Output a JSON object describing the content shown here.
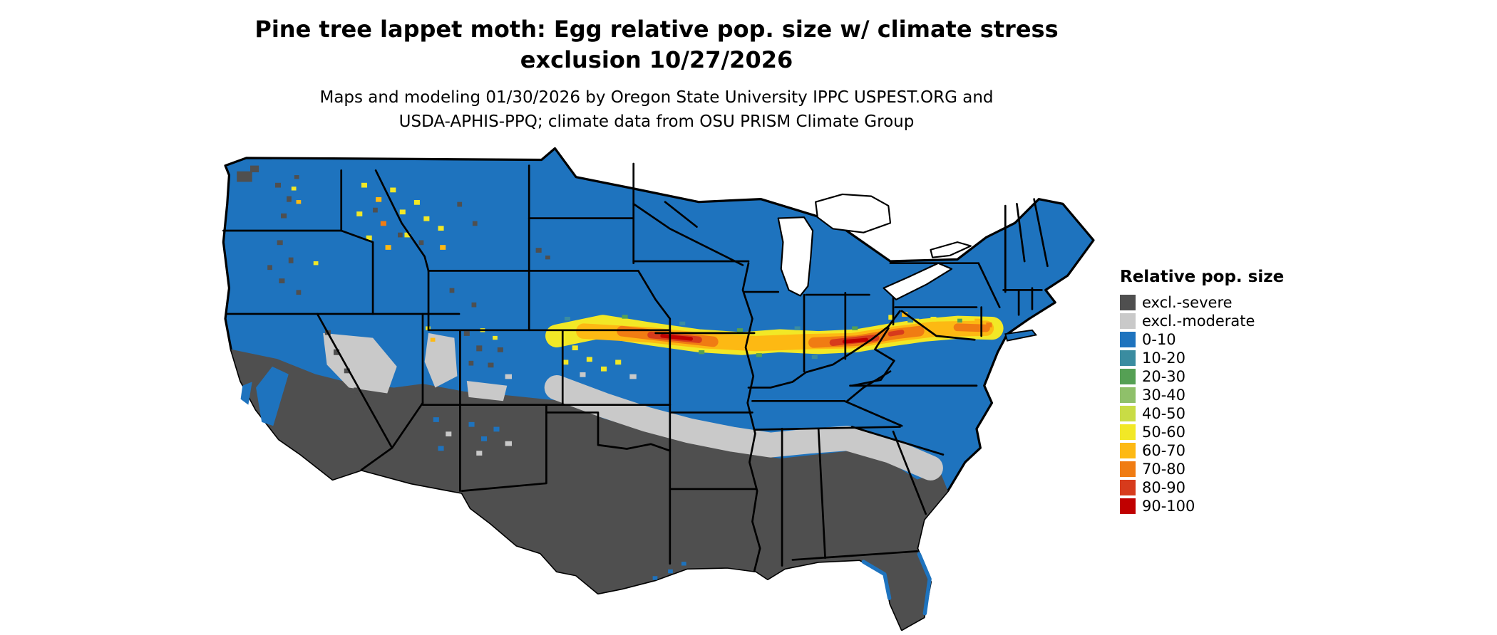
{
  "title": {
    "line1": "Pine tree lappet moth: Egg relative pop. size w/ climate stress",
    "line2": "exclusion 10/27/2026"
  },
  "subtitle": {
    "line1": "Maps and modeling 01/30/2026 by Oregon State University IPPC USPEST.ORG and",
    "line2": "USDA-APHIS-PPQ; climate data from OSU PRISM Climate Group"
  },
  "legend": {
    "title": "Relative pop. size",
    "entries": [
      {
        "label": "excl.-severe",
        "color": "#4F4F4F"
      },
      {
        "label": "excl.-moderate",
        "color": "#C9C9C9"
      },
      {
        "label": "0-10",
        "color": "#1E73BE"
      },
      {
        "label": "10-20",
        "color": "#3A8CA0"
      },
      {
        "label": "20-30",
        "color": "#55A054"
      },
      {
        "label": "30-40",
        "color": "#8FC06A"
      },
      {
        "label": "40-50",
        "color": "#C9DC45"
      },
      {
        "label": "50-60",
        "color": "#F2E826"
      },
      {
        "label": "60-70",
        "color": "#FDB913"
      },
      {
        "label": "70-80",
        "color": "#F07C13"
      },
      {
        "label": "80-90",
        "color": "#D73B1C"
      },
      {
        "label": "90-100",
        "color": "#C00000"
      }
    ]
  },
  "map": {
    "region": "Continental United States"
  }
}
